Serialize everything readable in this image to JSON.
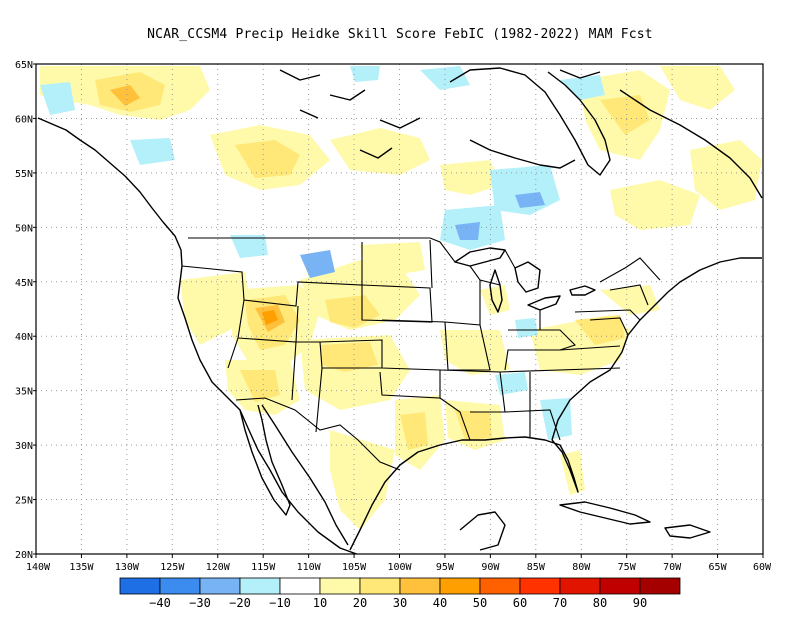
{
  "title": "NCAR_CCSM4 Precip Heidke Skill Score FebIC (1982-2022) MAM Fcst",
  "map": {
    "lon_ticks": [
      "140W",
      "135W",
      "130W",
      "125W",
      "120W",
      "115W",
      "110W",
      "105W",
      "100W",
      "95W",
      "90W",
      "85W",
      "80W",
      "75W",
      "70W",
      "65W",
      "60W"
    ],
    "lat_ticks": [
      "65N",
      "60N",
      "55N",
      "50N",
      "45N",
      "40N",
      "35N",
      "30N",
      "25N",
      "20N"
    ],
    "lon_range": [
      -140,
      -60
    ],
    "lat_range": [
      20,
      65
    ],
    "gridlines": true
  },
  "colorbar": {
    "colors": [
      "#1e6ee6",
      "#3c8cf0",
      "#78b4f5",
      "#b4f0fa",
      "#ffffff",
      "#fffaaa",
      "#ffe878",
      "#ffc03c",
      "#ffa000",
      "#ff6000",
      "#ff3200",
      "#e11400",
      "#c00000",
      "#a50000"
    ],
    "labels": [
      "−40",
      "−30",
      "−20",
      "−10",
      "10",
      "20",
      "30",
      "40",
      "50",
      "60",
      "70",
      "80",
      "90"
    ]
  },
  "fill_colors": {
    "c20": "#fffaaa",
    "c30": "#ffe878",
    "c40": "#ffc03c",
    "c50": "#ffa000",
    "cneg10": "#b4f0fa",
    "cneg20": "#78b4f5",
    "cneg30": "#3c8cf0"
  }
}
